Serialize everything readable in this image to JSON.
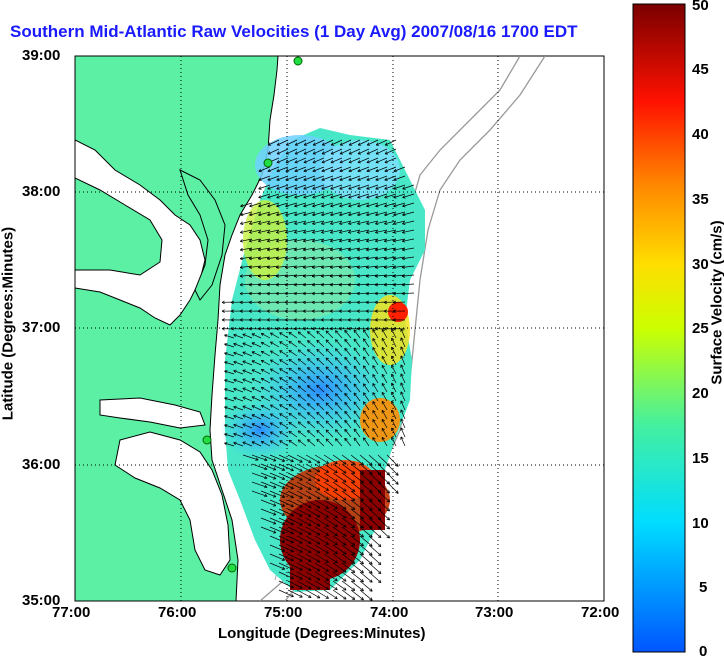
{
  "title": "Southern Mid-Atlantic Raw Velocities (1 Day Avg) 2007/08/16 1700 EDT",
  "axes": {
    "xlabel": "Longitude (Degrees:Minutes)",
    "ylabel": "Latitude (Degrees:Minutes)",
    "x_ticks": [
      "77:00",
      "76:00",
      "75:00",
      "74:00",
      "73:00",
      "72:00"
    ],
    "y_ticks": [
      "39:00",
      "38:00",
      "37:00",
      "36:00",
      "35:00"
    ]
  },
  "colorbar": {
    "label": "Surface Velocity (cm/s)",
    "ticks": [
      "50",
      "45",
      "40",
      "35",
      "30",
      "25",
      "20",
      "15",
      "10",
      "5",
      "0"
    ],
    "range": [
      0,
      50
    ]
  },
  "colors": {
    "land": "#5cf0a5",
    "water": "#ffffff",
    "title": "#1a1aff",
    "coast": "#000000",
    "bathymetry": "#999999",
    "station": "#22dd44"
  }
}
